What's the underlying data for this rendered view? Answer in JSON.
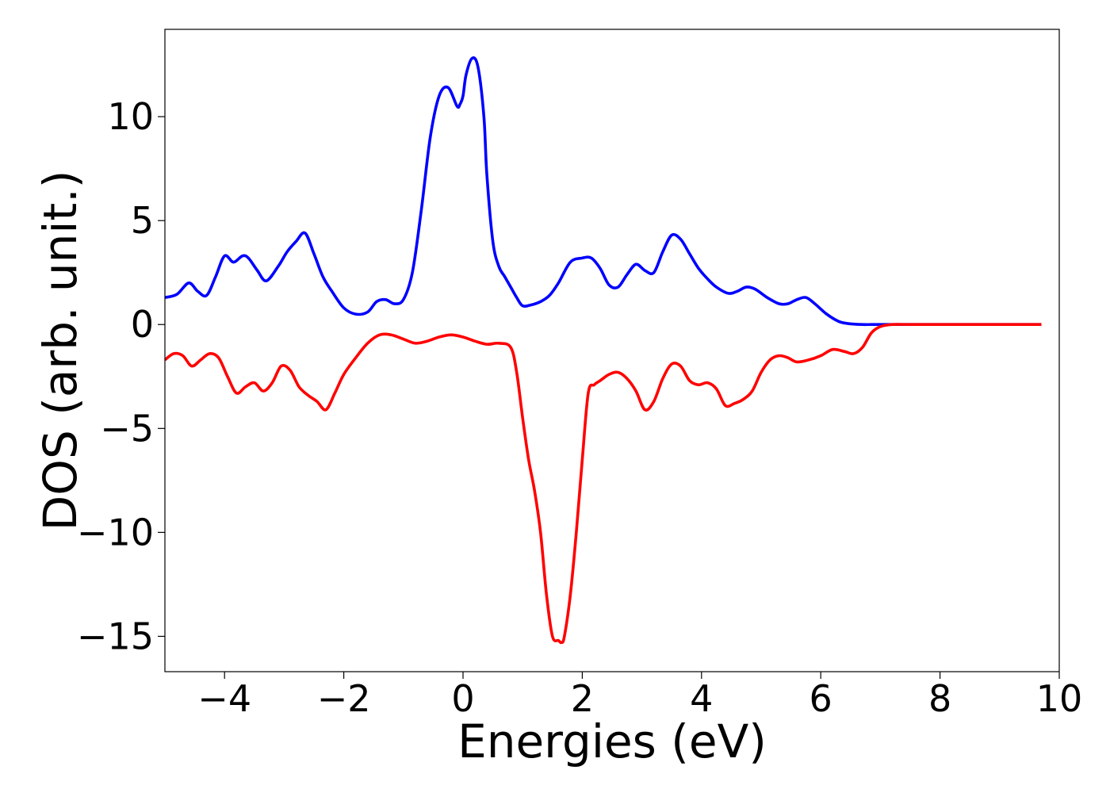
{
  "chart_data": {
    "type": "line",
    "title": "",
    "xlabel": "Energies (eV)",
    "ylabel": "DOS (arb. unit.)",
    "xlim": [
      -5,
      10
    ],
    "ylim": [
      -16.7,
      14.2
    ],
    "x_ticks": [
      -4,
      -2,
      0,
      2,
      4,
      6,
      8,
      10
    ],
    "x_tick_labels": [
      "−4",
      "−2",
      "0",
      "2",
      "4",
      "6",
      "8",
      "10"
    ],
    "y_ticks": [
      -15,
      -10,
      -5,
      0,
      5,
      10
    ],
    "y_tick_labels": [
      "−15",
      "−10",
      "−5",
      "0",
      "5",
      "10"
    ],
    "grid": false,
    "series": [
      {
        "color": "#0000ff",
        "x": [
          -5.0,
          -4.8,
          -4.6,
          -4.45,
          -4.3,
          -4.15,
          -4.0,
          -3.85,
          -3.7,
          -3.6,
          -3.45,
          -3.3,
          -3.1,
          -2.95,
          -2.8,
          -2.65,
          -2.5,
          -2.35,
          -2.2,
          -2.0,
          -1.8,
          -1.6,
          -1.45,
          -1.3,
          -1.15,
          -1.0,
          -0.85,
          -0.7,
          -0.55,
          -0.4,
          -0.25,
          -0.1,
          -0.05,
          0.0,
          0.05,
          0.15,
          0.25,
          0.35,
          0.4,
          0.5,
          0.6,
          0.7,
          0.8,
          0.9,
          1.0,
          1.15,
          1.3,
          1.45,
          1.6,
          1.8,
          2.0,
          2.15,
          2.3,
          2.45,
          2.6,
          2.75,
          2.9,
          3.05,
          3.2,
          3.35,
          3.5,
          3.65,
          3.8,
          3.95,
          4.1,
          4.25,
          4.45,
          4.6,
          4.75,
          4.9,
          5.1,
          5.3,
          5.45,
          5.6,
          5.75,
          5.9,
          6.1,
          6.3,
          6.45,
          6.55,
          6.7,
          6.85,
          7.0,
          7.2,
          7.5,
          8.0,
          9.0,
          9.7
        ],
        "y": [
          1.3,
          1.45,
          2.0,
          1.6,
          1.4,
          2.3,
          3.3,
          3.0,
          3.3,
          3.2,
          2.6,
          2.1,
          2.8,
          3.5,
          4.0,
          4.4,
          3.4,
          2.3,
          1.6,
          0.8,
          0.5,
          0.6,
          1.1,
          1.2,
          1.0,
          1.2,
          2.5,
          5.5,
          9.0,
          11.0,
          11.4,
          10.5,
          10.6,
          11.0,
          12.0,
          12.8,
          12.4,
          10.0,
          7.2,
          4.0,
          2.8,
          2.3,
          1.8,
          1.3,
          0.9,
          0.95,
          1.1,
          1.4,
          2.0,
          3.0,
          3.2,
          3.2,
          2.7,
          1.9,
          1.8,
          2.4,
          2.9,
          2.6,
          2.5,
          3.5,
          4.3,
          4.1,
          3.4,
          2.7,
          2.2,
          1.8,
          1.5,
          1.6,
          1.8,
          1.7,
          1.3,
          1.0,
          1.0,
          1.2,
          1.3,
          1.0,
          0.5,
          0.15,
          0.05,
          0.02,
          0.0,
          0.0,
          0.0,
          0.0,
          0.0,
          0.0,
          0.0,
          0.0
        ]
      },
      {
        "color": "#ff0000",
        "x": [
          -5.0,
          -4.85,
          -4.7,
          -4.55,
          -4.4,
          -4.25,
          -4.1,
          -3.95,
          -3.8,
          -3.65,
          -3.5,
          -3.35,
          -3.2,
          -3.05,
          -2.9,
          -2.75,
          -2.6,
          -2.45,
          -2.3,
          -2.15,
          -2.0,
          -1.8,
          -1.6,
          -1.4,
          -1.2,
          -1.0,
          -0.8,
          -0.6,
          -0.4,
          -0.2,
          0.0,
          0.2,
          0.4,
          0.6,
          0.8,
          0.9,
          1.0,
          1.1,
          1.2,
          1.3,
          1.4,
          1.5,
          1.6,
          1.65,
          1.7,
          1.8,
          1.9,
          2.0,
          2.1,
          2.2,
          2.3,
          2.45,
          2.6,
          2.75,
          2.9,
          3.05,
          3.2,
          3.35,
          3.5,
          3.65,
          3.8,
          3.95,
          4.1,
          4.25,
          4.4,
          4.55,
          4.7,
          4.85,
          5.0,
          5.15,
          5.3,
          5.45,
          5.6,
          5.8,
          6.0,
          6.2,
          6.4,
          6.55,
          6.7,
          6.85,
          7.0,
          7.2,
          7.5,
          8.0,
          9.0,
          9.7
        ],
        "y": [
          -1.7,
          -1.4,
          -1.5,
          -2.0,
          -1.7,
          -1.4,
          -1.6,
          -2.5,
          -3.3,
          -3.0,
          -2.8,
          -3.2,
          -2.8,
          -2.0,
          -2.2,
          -3.0,
          -3.4,
          -3.7,
          -4.1,
          -3.3,
          -2.4,
          -1.6,
          -0.9,
          -0.5,
          -0.5,
          -0.7,
          -0.9,
          -0.8,
          -0.6,
          -0.5,
          -0.6,
          -0.8,
          -0.95,
          -0.9,
          -1.1,
          -2.3,
          -4.5,
          -6.5,
          -8.0,
          -10.0,
          -13.0,
          -15.0,
          -15.2,
          -15.3,
          -15.0,
          -13.0,
          -10.0,
          -6.5,
          -3.3,
          -2.9,
          -2.7,
          -2.4,
          -2.3,
          -2.6,
          -3.2,
          -4.1,
          -3.7,
          -2.6,
          -1.9,
          -2.0,
          -2.7,
          -2.9,
          -2.8,
          -3.1,
          -3.9,
          -3.8,
          -3.6,
          -3.2,
          -2.3,
          -1.7,
          -1.5,
          -1.6,
          -1.8,
          -1.7,
          -1.5,
          -1.2,
          -1.3,
          -1.4,
          -1.1,
          -0.4,
          -0.1,
          0.0,
          0.0,
          0.0,
          0.0,
          0.0
        ]
      }
    ]
  }
}
